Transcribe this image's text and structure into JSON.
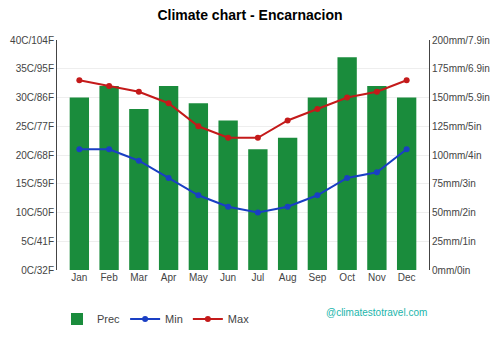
{
  "chart_data": {
    "type": "bar",
    "title": "Climate chart - Encarnacion",
    "categories": [
      "Jan",
      "Feb",
      "Mar",
      "Apr",
      "May",
      "Jun",
      "Jul",
      "Aug",
      "Sep",
      "Oct",
      "Nov",
      "Dec"
    ],
    "series": [
      {
        "name": "Prec",
        "type": "bar",
        "axis": "y2",
        "color": "#1a8c3c",
        "values": [
          150,
          160,
          140,
          160,
          145,
          130,
          105,
          115,
          150,
          185,
          160,
          150
        ]
      },
      {
        "name": "Min",
        "type": "line",
        "marker": "circle",
        "color": "#1a3fc4",
        "values": [
          21,
          21,
          19,
          16,
          13,
          11,
          10,
          11,
          13,
          16,
          17,
          21
        ]
      },
      {
        "name": "Max",
        "type": "line",
        "marker": "circle",
        "color": "#c41a1a",
        "values": [
          33,
          32,
          31,
          29,
          25,
          23,
          23,
          26,
          28,
          30,
          31,
          33
        ]
      }
    ],
    "ylim": [
      0,
      40
    ],
    "yticks": [
      {
        "value": 0,
        "label": "0C/32F"
      },
      {
        "value": 5,
        "label": "5C/41F"
      },
      {
        "value": 10,
        "label": "10C/50F"
      },
      {
        "value": 15,
        "label": "15C/59F"
      },
      {
        "value": 20,
        "label": "20C/68F"
      },
      {
        "value": 25,
        "label": "25C/77F"
      },
      {
        "value": 30,
        "label": "30C/86F"
      },
      {
        "value": 35,
        "label": "35C/95F"
      },
      {
        "value": 40,
        "label": "40C/104F"
      }
    ],
    "y2lim": [
      0,
      200
    ],
    "y2ticks": [
      {
        "value": 0,
        "label": "0mm/0in"
      },
      {
        "value": 25,
        "label": "25mm/1in"
      },
      {
        "value": 50,
        "label": "50mm/2in"
      },
      {
        "value": 75,
        "label": "75mm/3in"
      },
      {
        "value": 100,
        "label": "100mm/4in"
      },
      {
        "value": 125,
        "label": "125mm/5in"
      },
      {
        "value": 150,
        "label": "150mm/5.9in"
      },
      {
        "value": 175,
        "label": "175mm/6.9in"
      },
      {
        "value": 200,
        "label": "200mm/7.9in"
      }
    ],
    "grid": true,
    "legend": "lower left",
    "annotations": [
      {
        "text": "@climatestotravel.com",
        "color": "#1ab5ab"
      }
    ]
  }
}
